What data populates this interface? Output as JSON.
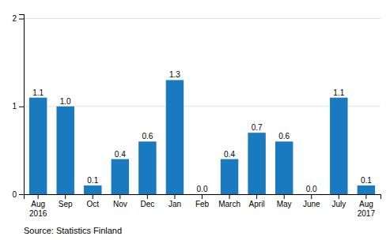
{
  "chart_data": {
    "type": "bar",
    "categories": [
      "Aug\n2016",
      "Sep",
      "Oct",
      "Nov",
      "Dec",
      "Jan",
      "Feb",
      "March",
      "April",
      "May",
      "June",
      "July",
      "Aug\n2017"
    ],
    "values": [
      1.1,
      1.0,
      0.1,
      0.4,
      0.6,
      1.3,
      0.0,
      0.4,
      0.7,
      0.6,
      0.0,
      1.1,
      0.1
    ],
    "value_labels": [
      "1.1",
      "1.0",
      "0.1",
      "0.4",
      "0.6",
      "1.3",
      "0.0",
      "0.4",
      "0.7",
      "0.6",
      "0.0",
      "1.1",
      "0.1"
    ],
    "color": "#1a7abf",
    "ylim": [
      0,
      2.05
    ],
    "yticks": [
      0,
      1,
      2
    ],
    "grid": true,
    "data_labels": true,
    "annotations": [
      "Source: Statistics Finland"
    ]
  }
}
